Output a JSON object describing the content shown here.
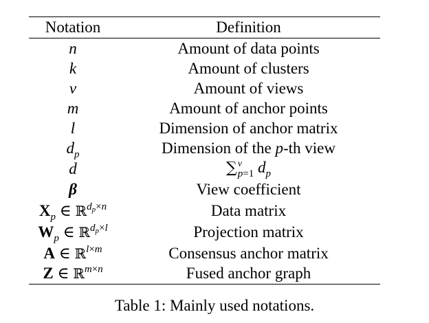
{
  "table": {
    "headers": {
      "notation": "Notation",
      "definition": "Definition"
    },
    "rows": [
      {
        "notation": "n",
        "definition": "Amount of data points"
      },
      {
        "notation": "k",
        "definition": "Amount of clusters"
      },
      {
        "notation": "v",
        "definition": "Amount of views"
      },
      {
        "notation": "m",
        "definition": "Amount of anchor points"
      },
      {
        "notation": "l",
        "definition": "Dimension of anchor matrix"
      },
      {
        "notation": "d_p",
        "definition": "Dimension of the p-th view"
      },
      {
        "notation": "d",
        "definition": "∑_{p=1}^{v} d_p"
      },
      {
        "notation": "β",
        "definition": "View coefficient"
      },
      {
        "notation": "X_p ∈ ℝ^{d_p×n}",
        "definition": "Data matrix"
      },
      {
        "notation": "W_p ∈ ℝ^{d_p×l}",
        "definition": "Projection matrix"
      },
      {
        "notation": "A ∈ ℝ^{l×m}",
        "definition": "Consensus anchor matrix"
      },
      {
        "notation": "Z ∈ ℝ^{m×n}",
        "definition": "Fused anchor graph"
      }
    ]
  },
  "caption": "Table 1: Mainly used notations."
}
